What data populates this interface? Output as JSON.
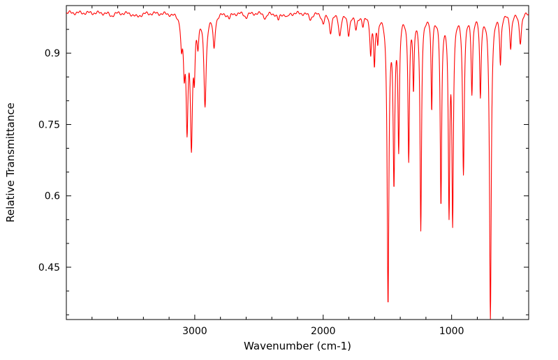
{
  "figure": {
    "background_color": "#ffffff",
    "axis_color": "#000000",
    "line_color": "#ff0000"
  },
  "chart_data": {
    "type": "line",
    "title": "",
    "xlabel": "Wavenumber (cm-1)",
    "ylabel": "Relative Transmittance",
    "grid": false,
    "legend": false,
    "x_axis": {
      "range": [
        4000,
        400
      ],
      "reversed": true,
      "major_ticks": [
        3000,
        2000,
        1000
      ],
      "tick_labels": [
        "3000",
        "2000",
        "1000"
      ],
      "minor_tick_interval": 200
    },
    "y_axis": {
      "range": [
        0.34,
        1.0
      ],
      "major_ticks": [
        0.9,
        0.75,
        0.6,
        0.45
      ],
      "tick_labels": [
        "0.9",
        "0.75",
        "0.6",
        "0.45"
      ],
      "minor_tick_interval": 0.05
    },
    "series": [
      {
        "name": "transmittance",
        "color": "#ff0000",
        "model": "lorentzian-absorption-bands",
        "baseline_transmittance": 0.985,
        "peaks": [
          {
            "center": 3650,
            "depth": 0.006,
            "width": 20
          },
          {
            "center": 3450,
            "depth": 0.008,
            "width": 30
          },
          {
            "center": 3103,
            "depth": 0.06,
            "width": 8
          },
          {
            "center": 3082,
            "depth": 0.1,
            "width": 8
          },
          {
            "center": 3060,
            "depth": 0.22,
            "width": 9
          },
          {
            "center": 3026,
            "depth": 0.265,
            "width": 10
          },
          {
            "center": 3003,
            "depth": 0.1,
            "width": 7
          },
          {
            "center": 2975,
            "depth": 0.05,
            "width": 8
          },
          {
            "center": 2920,
            "depth": 0.19,
            "width": 11
          },
          {
            "center": 2850,
            "depth": 0.07,
            "width": 10
          },
          {
            "center": 2730,
            "depth": 0.01,
            "width": 12
          },
          {
            "center": 2600,
            "depth": 0.008,
            "width": 15
          },
          {
            "center": 2450,
            "depth": 0.01,
            "width": 15
          },
          {
            "center": 2349,
            "depth": 0.015,
            "width": 12
          },
          {
            "center": 2280,
            "depth": 0.01,
            "width": 12
          },
          {
            "center": 2100,
            "depth": 0.012,
            "width": 15
          },
          {
            "center": 2000,
            "depth": 0.02,
            "width": 12
          },
          {
            "center": 1943,
            "depth": 0.038,
            "width": 11
          },
          {
            "center": 1871,
            "depth": 0.045,
            "width": 11
          },
          {
            "center": 1802,
            "depth": 0.042,
            "width": 11
          },
          {
            "center": 1745,
            "depth": 0.032,
            "width": 11
          },
          {
            "center": 1690,
            "depth": 0.025,
            "width": 10
          },
          {
            "center": 1630,
            "depth": 0.08,
            "width": 8
          },
          {
            "center": 1601,
            "depth": 0.105,
            "width": 7
          },
          {
            "center": 1575,
            "depth": 0.05,
            "width": 6
          },
          {
            "center": 1495,
            "depth": 0.6,
            "width": 8
          },
          {
            "center": 1449,
            "depth": 0.34,
            "width": 8
          },
          {
            "center": 1412,
            "depth": 0.27,
            "width": 7
          },
          {
            "center": 1334,
            "depth": 0.3,
            "width": 7
          },
          {
            "center": 1297,
            "depth": 0.15,
            "width": 6
          },
          {
            "center": 1240,
            "depth": 0.455,
            "width": 7
          },
          {
            "center": 1155,
            "depth": 0.2,
            "width": 6
          },
          {
            "center": 1083,
            "depth": 0.4,
            "width": 7
          },
          {
            "center": 1020,
            "depth": 0.405,
            "width": 7
          },
          {
            "center": 992,
            "depth": 0.42,
            "width": 7
          },
          {
            "center": 908,
            "depth": 0.33,
            "width": 8
          },
          {
            "center": 842,
            "depth": 0.16,
            "width": 7
          },
          {
            "center": 776,
            "depth": 0.17,
            "width": 7
          },
          {
            "center": 698,
            "depth": 0.64,
            "width": 8
          },
          {
            "center": 620,
            "depth": 0.1,
            "width": 7
          },
          {
            "center": 540,
            "depth": 0.07,
            "width": 8
          },
          {
            "center": 465,
            "depth": 0.06,
            "width": 10
          }
        ]
      }
    ]
  }
}
